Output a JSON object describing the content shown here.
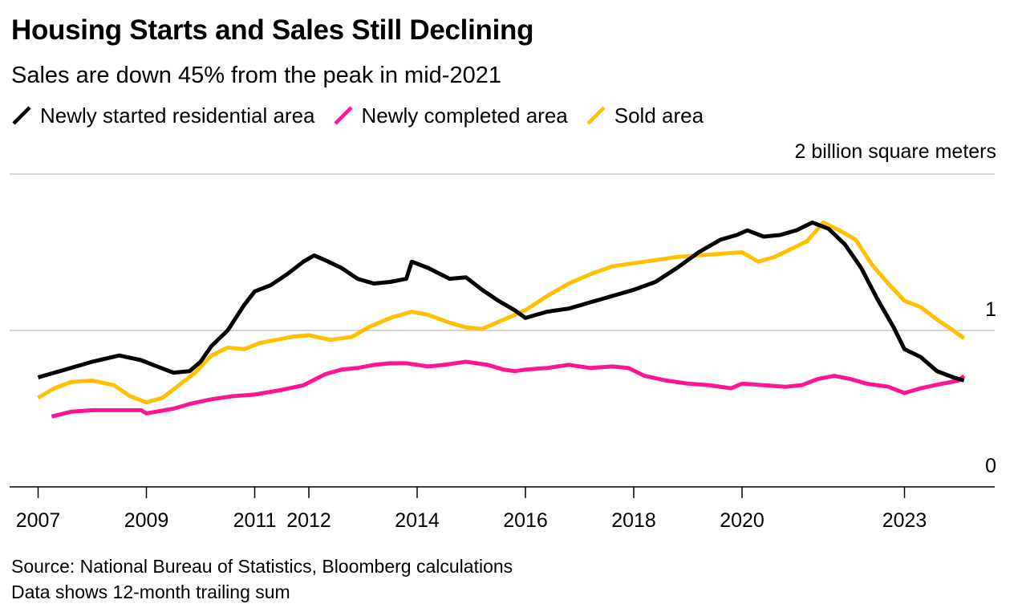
{
  "chart_data": {
    "type": "line",
    "title": "Housing Starts and Sales Still Declining",
    "subtitle": "Sales are down 45% from the peak in mid-2021",
    "ylabel": "2 billion square meters",
    "ylim": [
      0,
      2
    ],
    "y_ticks": [
      {
        "value": 0,
        "label": "0"
      },
      {
        "value": 1,
        "label": "1"
      },
      {
        "value": 2,
        "label": ""
      }
    ],
    "x_ticks": [
      "2007",
      "2009",
      "2011",
      "2012",
      "2014",
      "2016",
      "2018",
      "2020",
      "2023"
    ],
    "grid": true,
    "legend_position": "top-left",
    "series": [
      {
        "name": "Newly started residential area",
        "color": "#000000",
        "points": [
          [
            2007.0,
            0.7
          ],
          [
            2007.5,
            0.75
          ],
          [
            2008.0,
            0.8
          ],
          [
            2008.5,
            0.84
          ],
          [
            2008.9,
            0.81
          ],
          [
            2009.2,
            0.77
          ],
          [
            2009.5,
            0.73
          ],
          [
            2009.8,
            0.74
          ],
          [
            2010.0,
            0.8
          ],
          [
            2010.2,
            0.9
          ],
          [
            2010.5,
            1.0
          ],
          [
            2010.8,
            1.16
          ],
          [
            2011.0,
            1.25
          ],
          [
            2011.3,
            1.29
          ],
          [
            2011.6,
            1.36
          ],
          [
            2011.9,
            1.44
          ],
          [
            2012.1,
            1.48
          ],
          [
            2012.3,
            1.45
          ],
          [
            2012.6,
            1.4
          ],
          [
            2012.9,
            1.33
          ],
          [
            2013.2,
            1.3
          ],
          [
            2013.5,
            1.31
          ],
          [
            2013.8,
            1.33
          ],
          [
            2013.9,
            1.44
          ],
          [
            2014.2,
            1.4
          ],
          [
            2014.6,
            1.33
          ],
          [
            2014.9,
            1.34
          ],
          [
            2015.2,
            1.26
          ],
          [
            2015.5,
            1.19
          ],
          [
            2015.8,
            1.13
          ],
          [
            2016.0,
            1.08
          ],
          [
            2016.4,
            1.12
          ],
          [
            2016.8,
            1.14
          ],
          [
            2017.2,
            1.18
          ],
          [
            2017.6,
            1.22
          ],
          [
            2018.0,
            1.26
          ],
          [
            2018.4,
            1.31
          ],
          [
            2018.8,
            1.4
          ],
          [
            2019.2,
            1.5
          ],
          [
            2019.6,
            1.58
          ],
          [
            2019.9,
            1.61
          ],
          [
            2020.1,
            1.64
          ],
          [
            2020.4,
            1.6
          ],
          [
            2020.7,
            1.61
          ],
          [
            2021.0,
            1.64
          ],
          [
            2021.3,
            1.69
          ],
          [
            2021.6,
            1.65
          ],
          [
            2021.9,
            1.55
          ],
          [
            2022.2,
            1.4
          ],
          [
            2022.5,
            1.2
          ],
          [
            2022.8,
            1.02
          ],
          [
            2023.0,
            0.88
          ],
          [
            2023.3,
            0.83
          ],
          [
            2023.6,
            0.74
          ],
          [
            2023.9,
            0.7
          ],
          [
            2024.1,
            0.68
          ]
        ]
      },
      {
        "name": "Newly completed area",
        "color": "#ff1493",
        "points": [
          [
            2007.25,
            0.45
          ],
          [
            2007.6,
            0.48
          ],
          [
            2008.0,
            0.49
          ],
          [
            2008.5,
            0.49
          ],
          [
            2008.9,
            0.49
          ],
          [
            2009.0,
            0.47
          ],
          [
            2009.5,
            0.5
          ],
          [
            2009.8,
            0.53
          ],
          [
            2010.2,
            0.56
          ],
          [
            2010.6,
            0.58
          ],
          [
            2011.0,
            0.59
          ],
          [
            2011.5,
            0.62
          ],
          [
            2011.9,
            0.65
          ],
          [
            2012.3,
            0.72
          ],
          [
            2012.6,
            0.75
          ],
          [
            2012.9,
            0.76
          ],
          [
            2013.2,
            0.78
          ],
          [
            2013.5,
            0.79
          ],
          [
            2013.8,
            0.79
          ],
          [
            2014.2,
            0.77
          ],
          [
            2014.5,
            0.78
          ],
          [
            2014.9,
            0.8
          ],
          [
            2015.3,
            0.78
          ],
          [
            2015.6,
            0.75
          ],
          [
            2015.8,
            0.74
          ],
          [
            2016.0,
            0.75
          ],
          [
            2016.4,
            0.76
          ],
          [
            2016.8,
            0.78
          ],
          [
            2017.2,
            0.76
          ],
          [
            2017.6,
            0.77
          ],
          [
            2017.9,
            0.76
          ],
          [
            2018.2,
            0.71
          ],
          [
            2018.6,
            0.68
          ],
          [
            2019.0,
            0.66
          ],
          [
            2019.4,
            0.65
          ],
          [
            2019.8,
            0.63
          ],
          [
            2020.0,
            0.66
          ],
          [
            2020.4,
            0.65
          ],
          [
            2020.8,
            0.64
          ],
          [
            2021.1,
            0.65
          ],
          [
            2021.4,
            0.69
          ],
          [
            2021.7,
            0.71
          ],
          [
            2022.0,
            0.69
          ],
          [
            2022.3,
            0.66
          ],
          [
            2022.7,
            0.64
          ],
          [
            2023.0,
            0.6
          ],
          [
            2023.3,
            0.63
          ],
          [
            2023.7,
            0.66
          ],
          [
            2024.0,
            0.68
          ],
          [
            2024.1,
            0.71
          ]
        ]
      },
      {
        "name": "Sold area",
        "color": "#ffc000",
        "points": [
          [
            2007.0,
            0.57
          ],
          [
            2007.3,
            0.63
          ],
          [
            2007.6,
            0.67
          ],
          [
            2008.0,
            0.68
          ],
          [
            2008.4,
            0.65
          ],
          [
            2008.7,
            0.58
          ],
          [
            2009.0,
            0.54
          ],
          [
            2009.3,
            0.57
          ],
          [
            2009.6,
            0.65
          ],
          [
            2009.9,
            0.73
          ],
          [
            2010.2,
            0.84
          ],
          [
            2010.5,
            0.89
          ],
          [
            2010.8,
            0.88
          ],
          [
            2011.1,
            0.92
          ],
          [
            2011.4,
            0.94
          ],
          [
            2011.7,
            0.96
          ],
          [
            2012.0,
            0.97
          ],
          [
            2012.4,
            0.94
          ],
          [
            2012.8,
            0.96
          ],
          [
            2013.1,
            1.02
          ],
          [
            2013.5,
            1.08
          ],
          [
            2013.9,
            1.12
          ],
          [
            2014.2,
            1.1
          ],
          [
            2014.6,
            1.05
          ],
          [
            2014.9,
            1.02
          ],
          [
            2015.2,
            1.01
          ],
          [
            2015.6,
            1.07
          ],
          [
            2016.0,
            1.13
          ],
          [
            2016.4,
            1.22
          ],
          [
            2016.8,
            1.3
          ],
          [
            2017.2,
            1.36
          ],
          [
            2017.6,
            1.41
          ],
          [
            2018.0,
            1.43
          ],
          [
            2018.4,
            1.45
          ],
          [
            2018.8,
            1.47
          ],
          [
            2019.2,
            1.48
          ],
          [
            2019.6,
            1.49
          ],
          [
            2020.0,
            1.5
          ],
          [
            2020.3,
            1.44
          ],
          [
            2020.6,
            1.47
          ],
          [
            2020.9,
            1.52
          ],
          [
            2021.2,
            1.57
          ],
          [
            2021.5,
            1.69
          ],
          [
            2021.8,
            1.64
          ],
          [
            2022.1,
            1.58
          ],
          [
            2022.4,
            1.42
          ],
          [
            2022.7,
            1.3
          ],
          [
            2023.0,
            1.19
          ],
          [
            2023.3,
            1.15
          ],
          [
            2023.6,
            1.07
          ],
          [
            2023.9,
            1.0
          ],
          [
            2024.1,
            0.95
          ]
        ]
      }
    ]
  },
  "legend": {
    "items": [
      {
        "label": "Newly started residential area",
        "color": "#000000"
      },
      {
        "label": "Newly completed area",
        "color": "#ff1493"
      },
      {
        "label": "Sold area",
        "color": "#ffc000"
      }
    ]
  },
  "footer": {
    "source": "Source: National Bureau of Statistics, Bloomberg calculations",
    "note": "Data shows 12-month trailing sum"
  }
}
